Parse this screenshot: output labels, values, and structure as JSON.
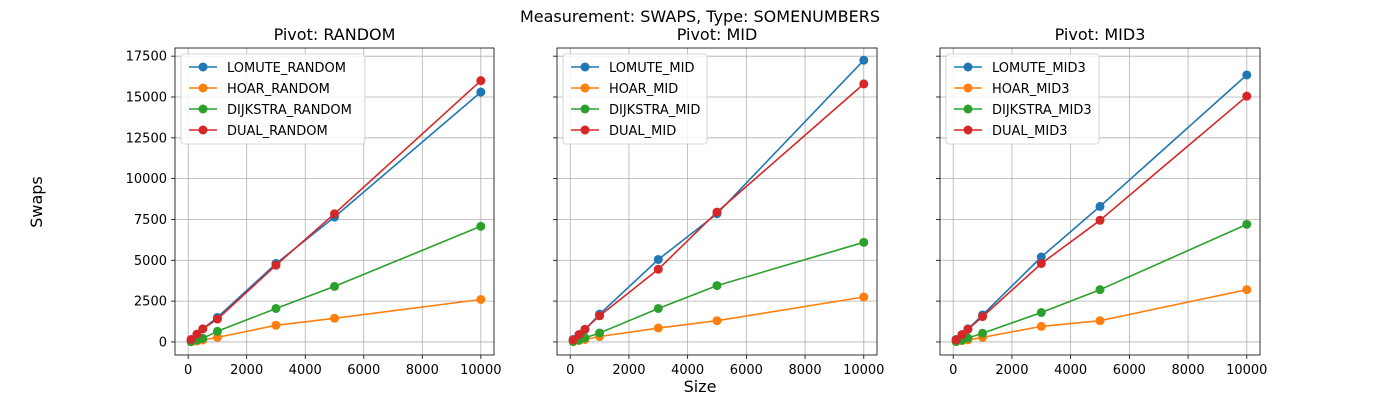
{
  "figure": {
    "suptitle": "Measurement: SWAPS, Type: SOMENUMBERS",
    "xlabel": "Size",
    "ylabel": "Swaps"
  },
  "colors": {
    "blue": "#1f77b4",
    "orange": "#ff7f0e",
    "green": "#2ca02c",
    "red": "#d62728",
    "grid": "#b0b0b0"
  },
  "chart_data": [
    {
      "type": "line",
      "title": "Pivot: RANDOM",
      "xlim": [
        -450,
        10450
      ],
      "ylim": [
        -800,
        18000
      ],
      "xticks": [
        0,
        2000,
        4000,
        6000,
        8000,
        10000
      ],
      "yticks": [
        0,
        2500,
        5000,
        7500,
        10000,
        12500,
        15000,
        17500
      ],
      "grid": true,
      "legend": "top-left",
      "x": [
        100,
        300,
        500,
        1000,
        3000,
        5000,
        10000
      ],
      "series": [
        {
          "name": "LOMUTE_RANDOM",
          "color": "#1f77b4",
          "values": [
            100,
            400,
            800,
            1500,
            4800,
            7650,
            15300
          ]
        },
        {
          "name": "HOAR_RANDOM",
          "color": "#ff7f0e",
          "values": [
            10,
            60,
            120,
            280,
            1020,
            1450,
            2600
          ]
        },
        {
          "name": "DIJKSTRA_RANDOM",
          "color": "#2ca02c",
          "values": [
            20,
            120,
            220,
            650,
            2050,
            3400,
            7080
          ]
        },
        {
          "name": "DUAL_RANDOM",
          "color": "#d62728",
          "values": [
            150,
            480,
            800,
            1400,
            4700,
            7850,
            16000
          ]
        }
      ]
    },
    {
      "type": "line",
      "title": "Pivot: MID",
      "xlim": [
        -450,
        10450
      ],
      "ylim": [
        -800,
        18000
      ],
      "xticks": [
        0,
        2000,
        4000,
        6000,
        8000,
        10000
      ],
      "yticks": [
        0,
        2500,
        5000,
        7500,
        10000,
        12500,
        15000,
        17500
      ],
      "grid": true,
      "legend": "top-left",
      "x": [
        100,
        300,
        500,
        1000,
        3000,
        5000,
        10000
      ],
      "series": [
        {
          "name": "LOMUTE_MID",
          "color": "#1f77b4",
          "values": [
            150,
            450,
            750,
            1700,
            5050,
            7850,
            17250
          ]
        },
        {
          "name": "HOAR_MID",
          "color": "#ff7f0e",
          "values": [
            20,
            90,
            150,
            330,
            850,
            1300,
            2750
          ]
        },
        {
          "name": "DIJKSTRA_MID",
          "color": "#2ca02c",
          "values": [
            30,
            120,
            250,
            550,
            2050,
            3450,
            6100
          ]
        },
        {
          "name": "DUAL_MID",
          "color": "#d62728",
          "values": [
            120,
            450,
            780,
            1600,
            4450,
            7950,
            15800
          ]
        }
      ]
    },
    {
      "type": "line",
      "title": "Pivot: MID3",
      "xlim": [
        -450,
        10450
      ],
      "ylim": [
        -800,
        18000
      ],
      "xticks": [
        0,
        2000,
        4000,
        6000,
        8000,
        10000
      ],
      "yticks": [
        0,
        2500,
        5000,
        7500,
        10000,
        12500,
        15000,
        17500
      ],
      "grid": true,
      "legend": "top-left",
      "x": [
        100,
        300,
        500,
        1000,
        3000,
        5000,
        10000
      ],
      "series": [
        {
          "name": "LOMUTE_MID3",
          "color": "#1f77b4",
          "values": [
            150,
            450,
            800,
            1650,
            5200,
            8300,
            16350
          ]
        },
        {
          "name": "HOAR_MID3",
          "color": "#ff7f0e",
          "values": [
            20,
            80,
            130,
            280,
            950,
            1300,
            3200
          ]
        },
        {
          "name": "DIJKSTRA_MID3",
          "color": "#2ca02c",
          "values": [
            30,
            120,
            240,
            530,
            1800,
            3200,
            7200
          ]
        },
        {
          "name": "DUAL_MID3",
          "color": "#d62728",
          "values": [
            130,
            450,
            770,
            1550,
            4800,
            7450,
            15050
          ]
        }
      ]
    }
  ]
}
